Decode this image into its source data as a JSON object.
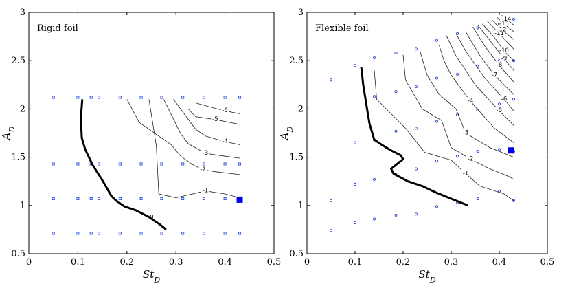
{
  "chart_data": [
    {
      "type": "contour",
      "title": "Rigid foil",
      "xlabel": "St",
      "xlabel_sub": "D",
      "ylabel": "A",
      "ylabel_sub": "D",
      "xlim": [
        0,
        0.5
      ],
      "ylim": [
        0.5,
        3
      ],
      "xticks": [
        "0",
        "0.1",
        "0.2",
        "0.3",
        "0.4",
        "0.5"
      ],
      "yticks": [
        "0.5",
        "1",
        "1.5",
        "2",
        "2.5",
        "3"
      ],
      "sample_points": {
        "x": [
          0.05,
          0.1,
          0.127,
          0.143,
          0.186,
          0.229,
          0.271,
          0.314,
          0.357,
          0.4,
          0.43
        ],
        "y": [
          0.71,
          1.07,
          1.43,
          2.12
        ],
        "color": "#1f3fd6"
      },
      "marker": {
        "x": 0.43,
        "y": 1.06,
        "color": "#0000e6"
      },
      "zero_contour": {
        "label": "0",
        "x": [
          0.109,
          0.106,
          0.108,
          0.115,
          0.13,
          0.15,
          0.168,
          0.178,
          0.195,
          0.218,
          0.245,
          0.268,
          0.28
        ],
        "y": [
          2.1,
          1.9,
          1.7,
          1.58,
          1.42,
          1.26,
          1.1,
          1.05,
          0.99,
          0.95,
          0.88,
          0.8,
          0.75
        ]
      },
      "contours": [
        {
          "label": "-1",
          "x": [
            0.245,
            0.26,
            0.265,
            0.3,
            0.36,
            0.4,
            0.43
          ],
          "y": [
            2.1,
            1.62,
            1.12,
            1.08,
            1.15,
            1.12,
            1.08
          ]
        },
        {
          "label": "-2",
          "x": [
            0.2,
            0.225,
            0.29,
            0.31,
            0.335,
            0.355,
            0.38,
            0.43
          ],
          "y": [
            2.1,
            1.86,
            1.63,
            1.51,
            1.42,
            1.37,
            1.35,
            1.32
          ]
        },
        {
          "label": "-3",
          "x": [
            0.275,
            0.31,
            0.325,
            0.36,
            0.4,
            0.43
          ],
          "y": [
            2.1,
            1.74,
            1.64,
            1.54,
            1.51,
            1.49
          ]
        },
        {
          "label": "-4",
          "x": [
            0.295,
            0.34,
            0.36,
            0.4,
            0.43
          ],
          "y": [
            2.1,
            1.79,
            1.72,
            1.66,
            1.63
          ]
        },
        {
          "label": "-5",
          "x": [
            0.325,
            0.34,
            0.38,
            0.43
          ],
          "y": [
            2.0,
            1.92,
            1.89,
            1.84
          ]
        },
        {
          "label": "-6",
          "x": [
            0.342,
            0.37,
            0.4,
            0.43
          ],
          "y": [
            2.06,
            2.02,
            1.98,
            1.95
          ]
        }
      ]
    },
    {
      "type": "contour",
      "title": "Flexible foil",
      "xlabel": "St",
      "xlabel_sub": "D",
      "ylabel": "A",
      "ylabel_sub": "D",
      "xlim": [
        0,
        0.5
      ],
      "ylim": [
        0.5,
        3
      ],
      "xticks": [
        "0",
        "0.1",
        "0.2",
        "0.3",
        "0.4",
        "0.5"
      ],
      "yticks": [
        "0.5",
        "1",
        "1.5",
        "2",
        "2.5",
        "3"
      ],
      "sample_points": {
        "x": [
          0.05,
          0.1,
          0.14,
          0.185,
          0.227,
          0.27,
          0.313,
          0.355,
          0.4,
          0.43
        ],
        "color": "#1f3fd6"
      },
      "marker": {
        "x": 0.425,
        "y": 1.57,
        "color": "#0000e6"
      },
      "zero_contour": {
        "label": "0",
        "x": [
          0.113,
          0.117,
          0.125,
          0.13,
          0.14,
          0.155,
          0.175,
          0.195,
          0.2,
          0.185,
          0.175,
          0.18,
          0.21,
          0.24,
          0.27,
          0.3,
          0.335
        ],
        "y": [
          2.43,
          2.25,
          2.0,
          1.85,
          1.68,
          1.63,
          1.57,
          1.52,
          1.48,
          1.42,
          1.38,
          1.33,
          1.25,
          1.2,
          1.13,
          1.07,
          1.0
        ]
      },
      "contours": [
        {
          "label": "-1",
          "x": [
            0.14,
            0.145,
            0.175,
            0.205,
            0.245,
            0.3,
            0.33,
            0.36,
            0.41,
            0.43
          ],
          "y": [
            2.4,
            2.1,
            1.95,
            1.8,
            1.55,
            1.47,
            1.33,
            1.2,
            1.12,
            1.05
          ]
        },
        {
          "label": "-2",
          "x": [
            0.2,
            0.205,
            0.24,
            0.28,
            0.3,
            0.34,
            0.38,
            0.42,
            0.43
          ],
          "y": [
            2.56,
            2.3,
            2.0,
            1.88,
            1.6,
            1.48,
            1.38,
            1.3,
            1.27
          ]
        },
        {
          "label": "-3",
          "x": [
            0.235,
            0.25,
            0.275,
            0.31,
            0.33,
            0.38,
            0.43
          ],
          "y": [
            2.6,
            2.35,
            2.15,
            2.0,
            1.75,
            1.6,
            1.5
          ]
        },
        {
          "label": "-4",
          "x": [
            0.275,
            0.285,
            0.3,
            0.34,
            0.39,
            0.43
          ],
          "y": [
            2.66,
            2.5,
            2.35,
            2.08,
            1.8,
            1.65
          ]
        },
        {
          "label": "-5",
          "x": [
            0.29,
            0.31,
            0.35,
            0.4,
            0.43
          ],
          "y": [
            2.76,
            2.55,
            2.25,
            1.98,
            1.83
          ]
        },
        {
          "label": "-6",
          "x": [
            0.31,
            0.33,
            0.37,
            0.41,
            0.43
          ],
          "y": [
            2.78,
            2.6,
            2.32,
            2.1,
            1.98
          ]
        },
        {
          "label": "-7",
          "x": [
            0.33,
            0.36,
            0.39,
            0.43
          ],
          "y": [
            2.8,
            2.55,
            2.35,
            2.15
          ]
        },
        {
          "label": "-8",
          "x": [
            0.345,
            0.37,
            0.4,
            0.43
          ],
          "y": [
            2.85,
            2.65,
            2.45,
            2.28
          ]
        },
        {
          "label": "-9",
          "x": [
            0.355,
            0.385,
            0.41,
            0.43
          ],
          "y": [
            2.87,
            2.68,
            2.52,
            2.4
          ]
        },
        {
          "label": "-10",
          "x": [
            0.365,
            0.39,
            0.41,
            0.43
          ],
          "y": [
            2.88,
            2.74,
            2.6,
            2.5
          ]
        },
        {
          "label": "-11",
          "x": [
            0.375,
            0.4,
            0.43
          ],
          "y": [
            2.91,
            2.78,
            2.62
          ]
        },
        {
          "label": "-12",
          "x": [
            0.385,
            0.405,
            0.43
          ],
          "y": [
            2.92,
            2.82,
            2.72
          ]
        },
        {
          "label": "-13",
          "x": [
            0.395,
            0.41,
            0.43
          ],
          "y": [
            2.95,
            2.88,
            2.8
          ]
        },
        {
          "label": "-14",
          "x": [
            0.405,
            0.415,
            0.43
          ],
          "y": [
            2.97,
            2.93,
            2.87
          ]
        }
      ]
    }
  ]
}
